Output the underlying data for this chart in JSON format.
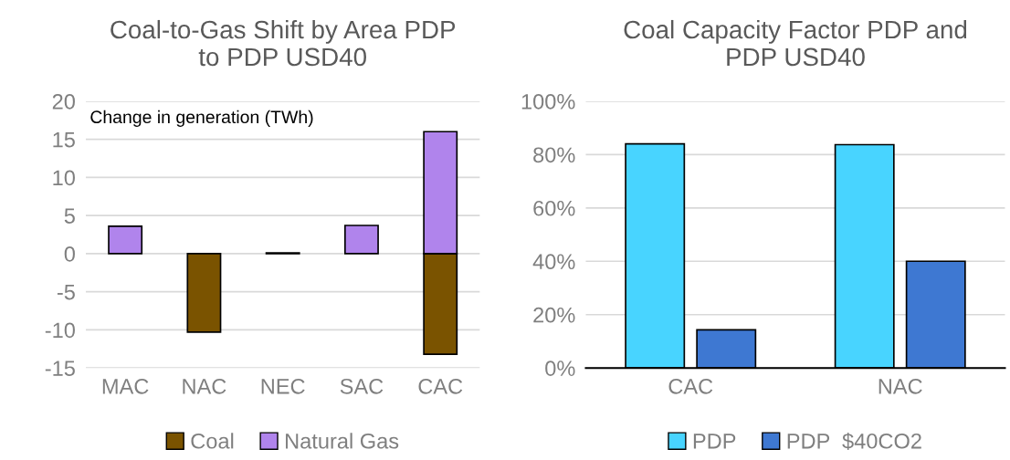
{
  "chart_data": [
    {
      "type": "bar",
      "title": "Coal-to-Gas Shift by Area PDP\nto PDP USD40",
      "categories": [
        "MAC",
        "NAC",
        "NEC",
        "SAC",
        "CAC"
      ],
      "stacked": true,
      "series": [
        {
          "name": "Coal",
          "color": "#7a5300",
          "values": [
            null,
            -10.3,
            null,
            null,
            -13.2
          ]
        },
        {
          "name": "Natural Gas",
          "color": "#b084ec",
          "values": [
            3.6,
            null,
            0.1,
            3.7,
            16.0
          ]
        }
      ],
      "ylim": [
        -15,
        20
      ],
      "yticks": [
        -15,
        -10,
        -5,
        0,
        5,
        10,
        15,
        20
      ],
      "grid": "y",
      "legend": "bottom",
      "annotations": [
        "Change in generation (TWh)"
      ]
    },
    {
      "type": "bar",
      "title": "Coal Capacity Factor PDP and\nPDP USD40",
      "categories": [
        "CAC",
        "NAC"
      ],
      "series": [
        {
          "name": "PDP",
          "color": "#48d4ff",
          "values": [
            84.0,
            83.7
          ]
        },
        {
          "name": "PDP  $40CO2",
          "color": "#3e78d2",
          "values": [
            14.3,
            40
          ]
        }
      ],
      "ylim": [
        0,
        100
      ],
      "yticks": [
        {
          "value": 0,
          "label": "0%"
        },
        {
          "value": 20,
          "label": "20%"
        },
        {
          "value": 40,
          "label": "40%"
        },
        {
          "value": 60,
          "label": "60%"
        },
        {
          "value": 80,
          "label": "80%"
        },
        {
          "value": 100,
          "label": "100%"
        }
      ],
      "grid": "y",
      "legend": "bottom"
    }
  ]
}
